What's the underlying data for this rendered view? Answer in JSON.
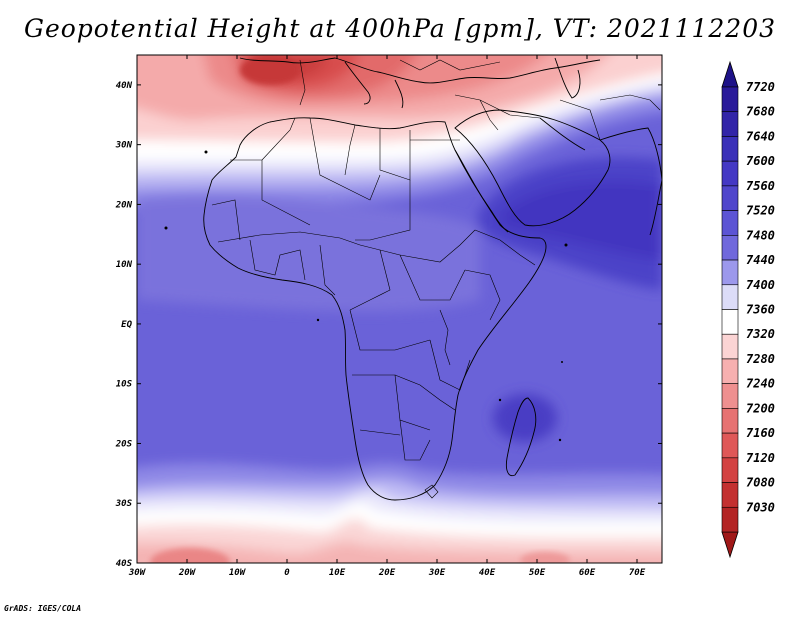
{
  "title": "Geopotential Height at 400hPa [gpm], VT: 2021112203",
  "credit": "GrADS: IGES/COLA",
  "map": {
    "lon_range": [
      -30,
      75
    ],
    "lat_range": [
      -40,
      45
    ],
    "lat_ticks": [
      {
        "lat": 40,
        "label": "40N"
      },
      {
        "lat": 30,
        "label": "30N"
      },
      {
        "lat": 20,
        "label": "20N"
      },
      {
        "lat": 10,
        "label": "10N"
      },
      {
        "lat": 0,
        "label": "EQ"
      },
      {
        "lat": -10,
        "label": "10S"
      },
      {
        "lat": -20,
        "label": "20S"
      },
      {
        "lat": -30,
        "label": "30S"
      },
      {
        "lat": -40,
        "label": "40S"
      }
    ],
    "lon_ticks": [
      {
        "lon": -30,
        "label": "30W"
      },
      {
        "lon": -20,
        "label": "20W"
      },
      {
        "lon": -10,
        "label": "10W"
      },
      {
        "lon": 0,
        "label": "0"
      },
      {
        "lon": 10,
        "label": "10E"
      },
      {
        "lon": 20,
        "label": "20E"
      },
      {
        "lon": 30,
        "label": "30E"
      },
      {
        "lon": 40,
        "label": "40E"
      },
      {
        "lon": 50,
        "label": "50E"
      },
      {
        "lon": 60,
        "label": "60E"
      },
      {
        "lon": 70,
        "label": "70E"
      }
    ]
  },
  "colorbar": {
    "levels": [
      {
        "label": "7720",
        "color": "#2a1a9a"
      },
      {
        "label": "7680",
        "color": "#3224a8"
      },
      {
        "label": "7640",
        "color": "#3a30b8"
      },
      {
        "label": "7600",
        "color": "#4438c4"
      },
      {
        "label": "7560",
        "color": "#5046cc"
      },
      {
        "label": "7520",
        "color": "#5c54d4"
      },
      {
        "label": "7480",
        "color": "#7068dc"
      },
      {
        "label": "7440",
        "color": "#9c98ec"
      },
      {
        "label": "7400",
        "color": "#dcdcf8"
      },
      {
        "label": "7360",
        "color": "#ffffff"
      },
      {
        "label": "7320",
        "color": "#fbd4d4"
      },
      {
        "label": "7280",
        "color": "#f7b0b0"
      },
      {
        "label": "7240",
        "color": "#ef9090"
      },
      {
        "label": "7200",
        "color": "#e77272"
      },
      {
        "label": "7160",
        "color": "#df5858"
      },
      {
        "label": "7120",
        "color": "#d34242"
      },
      {
        "label": "7080",
        "color": "#c33030"
      },
      {
        "label": "7030",
        "color": "#b32424"
      }
    ],
    "top_arrow_color": "#1e1288",
    "bottom_arrow_color": "#a01818"
  }
}
